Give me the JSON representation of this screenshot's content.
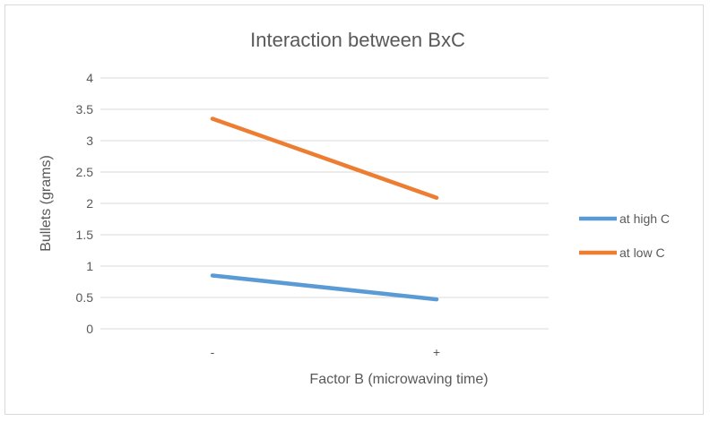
{
  "chart_data": {
    "type": "line",
    "title": "Interaction between BxC",
    "xlabel": "Factor B (microwaving time)",
    "ylabel": "Bullets (grams)",
    "categories": [
      "-",
      "+"
    ],
    "ylim": [
      0,
      4
    ],
    "yticks": [
      "0",
      "0.5",
      "1",
      "1.5",
      "2",
      "2.5",
      "3",
      "3.5",
      "4"
    ],
    "grid": true,
    "legend_position": "right",
    "series": [
      {
        "name": "at high C",
        "values": [
          0.85,
          0.47
        ],
        "color": "#5b9bd5"
      },
      {
        "name": "at low C",
        "values": [
          3.35,
          2.09
        ],
        "color": "#ed7d31"
      }
    ]
  }
}
